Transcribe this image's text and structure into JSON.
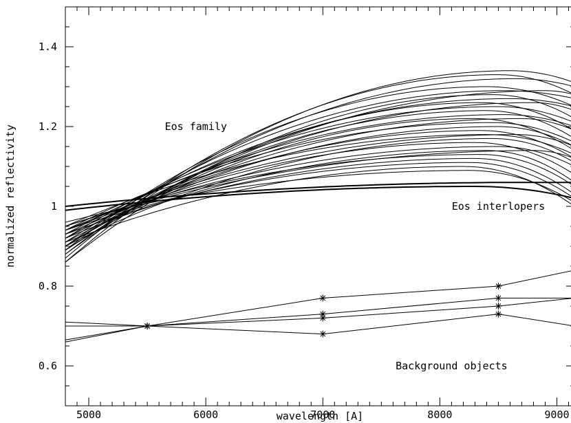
{
  "chart_data": {
    "type": "line",
    "xlabel": "wavelength [A]",
    "ylabel": "normalized reflectivity",
    "xlim": [
      4800,
      9150
    ],
    "ylim": [
      0.5,
      1.5
    ],
    "x_ticks": [
      5000,
      6000,
      7000,
      8000,
      9000
    ],
    "y_ticks": [
      0.6,
      0.8,
      1,
      1.2,
      1.4
    ],
    "x_tick_labels": [
      "5000",
      "6000",
      "7000",
      "8000",
      "9000"
    ],
    "y_tick_labels": [
      "0.6",
      "0.8",
      "1",
      "1.2",
      "1.4"
    ],
    "annotations": [
      {
        "text": "Eos family",
        "x": 5650,
        "y": 1.2
      },
      {
        "text": "Eos interlopers",
        "x": 8500,
        "y": 1.0
      },
      {
        "text": "Background objects",
        "x": 8100,
        "y": 0.6
      }
    ],
    "eos_family_curves": [
      {
        "y_start": 0.86,
        "y_peak": 1.34,
        "x_peak": 8600,
        "y_end": 1.31
      },
      {
        "y_start": 0.87,
        "y_peak": 1.33,
        "x_peak": 8500,
        "y_end": 1.28
      },
      {
        "y_start": 0.88,
        "y_peak": 1.32,
        "x_peak": 8650,
        "y_end": 1.3
      },
      {
        "y_start": 0.89,
        "y_peak": 1.3,
        "x_peak": 8400,
        "y_end": 1.25
      },
      {
        "y_start": 0.9,
        "y_peak": 1.29,
        "x_peak": 8550,
        "y_end": 1.27
      },
      {
        "y_start": 0.86,
        "y_peak": 1.28,
        "x_peak": 8450,
        "y_end": 1.22
      },
      {
        "y_start": 0.91,
        "y_peak": 1.27,
        "x_peak": 8600,
        "y_end": 1.25
      },
      {
        "y_start": 0.88,
        "y_peak": 1.26,
        "x_peak": 8350,
        "y_end": 1.19
      },
      {
        "y_start": 0.92,
        "y_peak": 1.25,
        "x_peak": 8500,
        "y_end": 1.21
      },
      {
        "y_start": 0.9,
        "y_peak": 1.24,
        "x_peak": 8400,
        "y_end": 1.17
      },
      {
        "y_start": 0.93,
        "y_peak": 1.23,
        "x_peak": 8550,
        "y_end": 1.2
      },
      {
        "y_start": 0.89,
        "y_peak": 1.22,
        "x_peak": 8300,
        "y_end": 1.14
      },
      {
        "y_start": 0.94,
        "y_peak": 1.21,
        "x_peak": 8450,
        "y_end": 1.16
      },
      {
        "y_start": 0.91,
        "y_peak": 1.2,
        "x_peak": 8500,
        "y_end": 1.15
      },
      {
        "y_start": 0.92,
        "y_peak": 1.19,
        "x_peak": 8350,
        "y_end": 1.12
      },
      {
        "y_start": 0.95,
        "y_peak": 1.18,
        "x_peak": 8400,
        "y_end": 1.13
      },
      {
        "y_start": 0.9,
        "y_peak": 1.17,
        "x_peak": 8450,
        "y_end": 1.11
      },
      {
        "y_start": 0.93,
        "y_peak": 1.16,
        "x_peak": 8300,
        "y_end": 1.08
      },
      {
        "y_start": 0.94,
        "y_peak": 1.15,
        "x_peak": 8500,
        "y_end": 1.1
      },
      {
        "y_start": 0.92,
        "y_peak": 1.14,
        "x_peak": 8400,
        "y_end": 1.06
      },
      {
        "y_start": 0.95,
        "y_peak": 1.13,
        "x_peak": 8350,
        "y_end": 1.05
      },
      {
        "y_start": 0.93,
        "y_peak": 1.12,
        "x_peak": 8300,
        "y_end": 1.03
      },
      {
        "y_start": 0.94,
        "y_peak": 1.11,
        "x_peak": 8250,
        "y_end": 1.02
      },
      {
        "y_start": 0.91,
        "y_peak": 1.1,
        "x_peak": 8200,
        "y_end": 1.0
      },
      {
        "y_start": 0.96,
        "y_peak": 1.09,
        "x_peak": 8250,
        "y_end": 1.01
      },
      {
        "y_start": 0.95,
        "y_peak": 1.14,
        "x_peak": 8800,
        "y_end": 1.12
      },
      {
        "y_start": 0.92,
        "y_peak": 1.22,
        "x_peak": 8700,
        "y_end": 1.19
      },
      {
        "y_start": 0.9,
        "y_peak": 1.26,
        "x_peak": 8800,
        "y_end": 1.24
      },
      {
        "y_start": 0.89,
        "y_peak": 1.29,
        "x_peak": 8900,
        "y_end": 1.28
      },
      {
        "y_start": 0.94,
        "y_peak": 1.18,
        "x_peak": 8650,
        "y_end": 1.15
      }
    ],
    "eos_interloper_curves": [
      {
        "y_start": 1.0,
        "y_peak": 1.06,
        "x_peak": 8700,
        "y_end": 1.06
      },
      {
        "y_start": 0.99,
        "y_peak": 1.05,
        "x_peak": 8300,
        "y_end": 1.02
      }
    ],
    "background_objects": [
      {
        "points": [
          [
            4800,
            0.66
          ],
          [
            5500,
            0.7
          ],
          [
            7000,
            0.77
          ],
          [
            8500,
            0.8
          ],
          [
            9150,
            0.84
          ]
        ]
      },
      {
        "points": [
          [
            4800,
            0.7
          ],
          [
            5500,
            0.7
          ],
          [
            7000,
            0.73
          ],
          [
            8500,
            0.77
          ],
          [
            9150,
            0.77
          ]
        ]
      },
      {
        "points": [
          [
            4800,
            0.71
          ],
          [
            5500,
            0.7
          ],
          [
            7000,
            0.68
          ],
          [
            8500,
            0.73
          ],
          [
            9150,
            0.7
          ]
        ]
      },
      {
        "points": [
          [
            4800,
            0.665
          ],
          [
            5500,
            0.7
          ],
          [
            7000,
            0.72
          ],
          [
            8500,
            0.75
          ],
          [
            9150,
            0.77
          ]
        ]
      }
    ]
  }
}
